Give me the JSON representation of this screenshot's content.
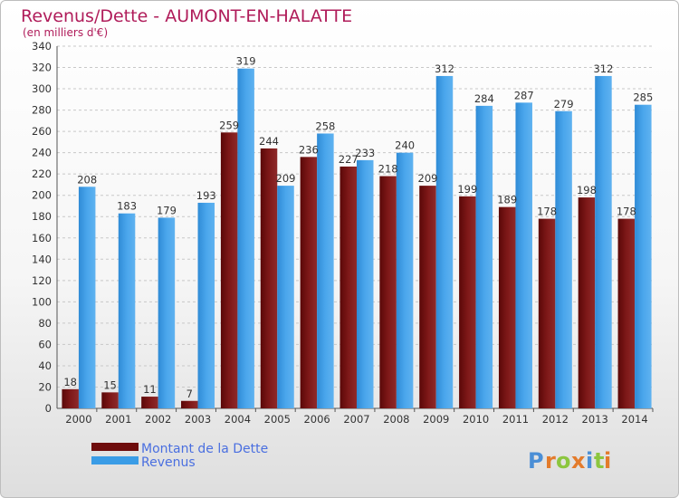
{
  "chart_data": {
    "type": "bar",
    "title": "Revenus/Dette - AUMONT-EN-HALATTE",
    "subtitle": "(en milliers d'€)",
    "categories": [
      "2000",
      "2001",
      "2002",
      "2003",
      "2004",
      "2005",
      "2006",
      "2007",
      "2008",
      "2009",
      "2010",
      "2011",
      "2012",
      "2013",
      "2014"
    ],
    "series": [
      {
        "name": "Montant de la Dette",
        "values": [
          18,
          15,
          11,
          7,
          259,
          244,
          236,
          227,
          218,
          209,
          199,
          189,
          178,
          198,
          178
        ],
        "color": "#6e0c0c"
      },
      {
        "name": "Revenus",
        "values": [
          208,
          183,
          179,
          193,
          319,
          209,
          258,
          233,
          240,
          312,
          284,
          287,
          279,
          312,
          285
        ],
        "color": "#3a9ce6"
      }
    ],
    "ylim": [
      0,
      340
    ],
    "yticks": [
      0,
      20,
      40,
      60,
      80,
      100,
      120,
      140,
      160,
      180,
      200,
      220,
      240,
      260,
      280,
      300,
      320,
      340
    ],
    "grid": true,
    "legend_position": "bottom-left"
  },
  "logo": {
    "text": "Proxiti",
    "letters": [
      "P",
      "r",
      "o",
      "x",
      "i",
      "t",
      "i"
    ]
  }
}
